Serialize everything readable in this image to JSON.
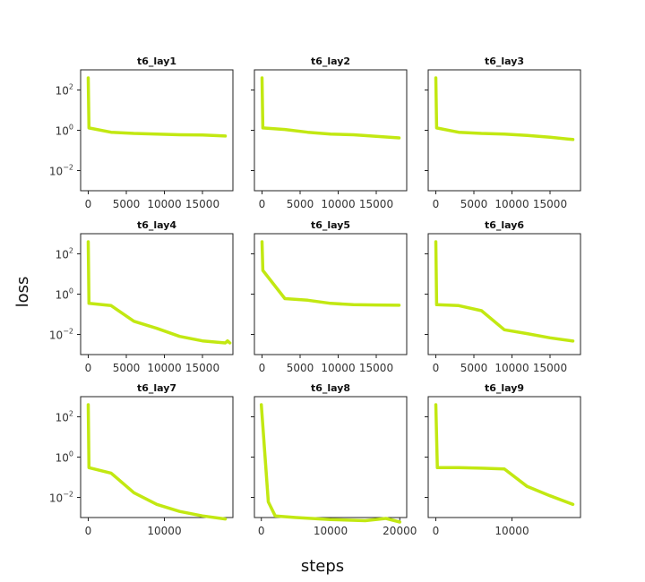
{
  "figure": {
    "xlabel": "steps",
    "ylabel": "loss",
    "line_color": "#c2e812"
  },
  "chart_data": [
    {
      "type": "line",
      "title": "t6_lay1",
      "yscale": "log",
      "ylim": [
        0.001,
        1000
      ],
      "xlim": [
        -1000,
        19000
      ],
      "xticks": [
        0,
        5000,
        10000,
        15000
      ],
      "xticklabels": [
        "0",
        "5000",
        "10000",
        "15000"
      ],
      "yticks": [
        0.01,
        1,
        100
      ],
      "x": [
        0,
        100,
        3000,
        6000,
        9000,
        12000,
        15000,
        18000
      ],
      "y": [
        400,
        1.3,
        0.8,
        0.7,
        0.65,
        0.6,
        0.58,
        0.52
      ]
    },
    {
      "type": "line",
      "title": "t6_lay2",
      "yscale": "log",
      "ylim": [
        0.001,
        1000
      ],
      "xlim": [
        -1000,
        19000
      ],
      "xticks": [
        0,
        5000,
        10000,
        15000
      ],
      "xticklabels": [
        "0",
        "5000",
        "10000",
        "15000"
      ],
      "yticks": [
        0.01,
        1,
        100
      ],
      "x": [
        0,
        100,
        3000,
        6000,
        9000,
        12000,
        15000,
        18000
      ],
      "y": [
        400,
        1.3,
        1.1,
        0.8,
        0.65,
        0.6,
        0.5,
        0.42
      ]
    },
    {
      "type": "line",
      "title": "t6_lay3",
      "yscale": "log",
      "ylim": [
        0.001,
        1000
      ],
      "xlim": [
        -1000,
        19000
      ],
      "xticks": [
        0,
        5000,
        10000,
        15000
      ],
      "xticklabels": [
        "0",
        "5000",
        "10000",
        "15000"
      ],
      "yticks": [
        0.01,
        1,
        100
      ],
      "x": [
        0,
        100,
        3000,
        6000,
        9000,
        12000,
        15000,
        18000
      ],
      "y": [
        400,
        1.3,
        0.8,
        0.7,
        0.65,
        0.55,
        0.45,
        0.35
      ]
    },
    {
      "type": "line",
      "title": "t6_lay4",
      "yscale": "log",
      "ylim": [
        0.001,
        1000
      ],
      "xlim": [
        -1000,
        19000
      ],
      "xticks": [
        0,
        5000,
        10000,
        15000
      ],
      "xticklabels": [
        "0",
        "5000",
        "10000",
        "15000"
      ],
      "yticks": [
        0.01,
        1,
        100
      ],
      "x": [
        0,
        100,
        3000,
        6000,
        9000,
        12000,
        15000,
        18000,
        18300,
        18600
      ],
      "y": [
        400,
        0.35,
        0.27,
        0.045,
        0.02,
        0.008,
        0.0048,
        0.0038,
        0.0048,
        0.0038
      ]
    },
    {
      "type": "line",
      "title": "t6_lay5",
      "yscale": "log",
      "ylim": [
        0.001,
        1000
      ],
      "xlim": [
        -1000,
        19000
      ],
      "xticks": [
        0,
        5000,
        10000,
        15000
      ],
      "xticklabels": [
        "0",
        "5000",
        "10000",
        "15000"
      ],
      "yticks": [
        0.01,
        1,
        100
      ],
      "x": [
        0,
        100,
        3000,
        6000,
        9000,
        12000,
        15000,
        18000
      ],
      "y": [
        400,
        15,
        0.6,
        0.5,
        0.35,
        0.3,
        0.29,
        0.28
      ]
    },
    {
      "type": "line",
      "title": "t6_lay6",
      "yscale": "log",
      "ylim": [
        0.001,
        1000
      ],
      "xlim": [
        -1000,
        19000
      ],
      "xticks": [
        0,
        5000,
        10000,
        15000
      ],
      "xticklabels": [
        "0",
        "5000",
        "10000",
        "15000"
      ],
      "yticks": [
        0.01,
        1,
        100
      ],
      "x": [
        0,
        100,
        3000,
        6000,
        9000,
        12000,
        15000,
        18000
      ],
      "y": [
        400,
        0.3,
        0.27,
        0.15,
        0.017,
        0.011,
        0.0068,
        0.0047
      ]
    },
    {
      "type": "line",
      "title": "t6_lay7",
      "yscale": "log",
      "ylim": [
        0.001,
        1000
      ],
      "xlim": [
        -1000,
        19000
      ],
      "xticks": [
        0,
        10000
      ],
      "xticklabels": [
        "0",
        "10000"
      ],
      "yticks": [
        0.01,
        1,
        100
      ],
      "x": [
        0,
        100,
        3000,
        6000,
        9000,
        12000,
        15000,
        18000
      ],
      "y": [
        400,
        0.3,
        0.16,
        0.017,
        0.0045,
        0.002,
        0.0012,
        0.00085
      ]
    },
    {
      "type": "line",
      "title": "t6_lay8",
      "yscale": "log",
      "ylim": [
        0.001,
        1000
      ],
      "xlim": [
        -1000,
        21000
      ],
      "xticks": [
        0,
        10000,
        20000
      ],
      "xticklabels": [
        "0",
        "10000",
        "20000"
      ],
      "yticks": [
        0.01,
        1,
        100
      ],
      "x": [
        0,
        1000,
        2000,
        5000,
        10000,
        15000,
        18000,
        20000
      ],
      "y": [
        400,
        0.006,
        0.0012,
        0.001,
        0.0008,
        0.0007,
        0.0009,
        0.0006
      ]
    },
    {
      "type": "line",
      "title": "t6_lay9",
      "yscale": "log",
      "ylim": [
        0.001,
        1000
      ],
      "xlim": [
        -1000,
        19000
      ],
      "xticks": [
        0,
        10000
      ],
      "xticklabels": [
        "0",
        "10000"
      ],
      "yticks": [
        0.01,
        1,
        100
      ],
      "x": [
        0,
        200,
        3000,
        6000,
        9000,
        12000,
        15000,
        18000
      ],
      "y": [
        400,
        0.3,
        0.3,
        0.28,
        0.26,
        0.035,
        0.012,
        0.0045
      ]
    }
  ]
}
